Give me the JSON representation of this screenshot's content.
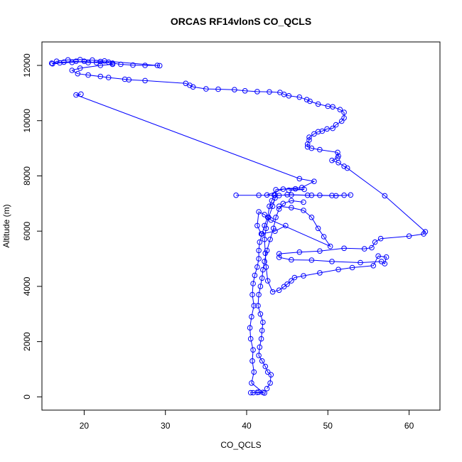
{
  "chart_data": {
    "type": "line",
    "title": "ORCAS RF14vlonS CO_QCLS",
    "xlabel": "CO_QCLS",
    "ylabel": "Altitude (m)",
    "xlim": [
      14.8,
      63.8
    ],
    "ylim": [
      -480,
      12850
    ],
    "x_ticks": [
      "20",
      "30",
      "40",
      "50",
      "60"
    ],
    "y_ticks": [
      "0",
      "2000",
      "4000",
      "6000",
      "8000",
      "10000",
      "12000"
    ],
    "grid": false,
    "legend": "none",
    "marker": "open-circle",
    "color": "#0000ff",
    "series": [
      {
        "values": [
          [
            16.0,
            12080
          ],
          [
            17.5,
            12120
          ],
          [
            19.0,
            12150
          ],
          [
            20.5,
            12100
          ],
          [
            22.0,
            12140
          ],
          [
            23.5,
            12080
          ],
          [
            24.5,
            12040
          ],
          [
            26.0,
            12010
          ],
          [
            27.5,
            12000
          ],
          [
            29.0,
            12000
          ],
          [
            29.3,
            11990
          ],
          [
            22.5,
            12160
          ],
          [
            21.0,
            12190
          ],
          [
            19.5,
            12210
          ],
          [
            18.0,
            12200
          ],
          [
            16.6,
            12150
          ],
          [
            16.1,
            12060
          ],
          [
            17.0,
            12090
          ],
          [
            18.5,
            12110
          ],
          [
            20.0,
            12150
          ],
          [
            21.5,
            12100
          ],
          [
            23.0,
            12120
          ],
          [
            23.5,
            12040
          ],
          [
            22.0,
            12000
          ],
          [
            19.5,
            11900
          ],
          [
            18.5,
            11820
          ],
          [
            19.2,
            11700
          ],
          [
            20.5,
            11650
          ],
          [
            22.0,
            11600
          ],
          [
            23.0,
            11560
          ],
          [
            25.0,
            11500
          ],
          [
            25.5,
            11480
          ],
          [
            27.5,
            11450
          ],
          [
            32.5,
            11350
          ],
          [
            33.0,
            11280
          ],
          [
            33.4,
            11220
          ],
          [
            35.0,
            11150
          ],
          [
            36.5,
            11140
          ],
          [
            38.5,
            11120
          ],
          [
            39.8,
            11080
          ],
          [
            41.3,
            11050
          ],
          [
            42.8,
            11040
          ],
          [
            44.1,
            11020
          ],
          [
            44.6,
            10950
          ],
          [
            45.2,
            10900
          ],
          [
            46.5,
            10850
          ],
          [
            47.4,
            10760
          ],
          [
            47.8,
            10700
          ],
          [
            48.8,
            10600
          ],
          [
            50.0,
            10520
          ],
          [
            50.6,
            10500
          ],
          [
            51.5,
            10400
          ],
          [
            52.0,
            10300
          ],
          [
            52.0,
            10100
          ],
          [
            51.7,
            9980
          ],
          [
            51.0,
            9850
          ],
          [
            50.6,
            9720
          ],
          [
            49.9,
            9700
          ],
          [
            49.3,
            9620
          ],
          [
            48.8,
            9600
          ],
          [
            48.3,
            9520
          ],
          [
            47.7,
            9400
          ],
          [
            47.7,
            9300
          ],
          [
            47.5,
            9150
          ],
          [
            47.5,
            9050
          ],
          [
            48.0,
            9000
          ],
          [
            49.0,
            8950
          ],
          [
            51.2,
            8850
          ],
          [
            51.3,
            8720
          ],
          [
            51.2,
            8650
          ],
          [
            50.5,
            8560
          ],
          [
            51.3,
            8480
          ],
          [
            52.0,
            8350
          ],
          [
            52.4,
            8280
          ],
          [
            57.0,
            7280
          ],
          [
            62.0,
            5980
          ],
          [
            61.8,
            5900
          ],
          [
            60.0,
            5820
          ],
          [
            56.5,
            5730
          ],
          [
            55.8,
            5600
          ],
          [
            55.4,
            5400
          ],
          [
            54.5,
            5360
          ],
          [
            52.0,
            5380
          ],
          [
            49.0,
            5280
          ],
          [
            46.5,
            5240
          ],
          [
            44.0,
            5180
          ],
          [
            44.0,
            5050
          ],
          [
            45.5,
            4960
          ],
          [
            48.0,
            4950
          ],
          [
            50.5,
            4900
          ],
          [
            54.0,
            4860
          ],
          [
            56.6,
            4900
          ],
          [
            57.0,
            4820
          ],
          [
            57.2,
            5060
          ],
          [
            56.2,
            5100
          ],
          [
            55.6,
            4750
          ],
          [
            53.0,
            4680
          ],
          [
            51.3,
            4610
          ],
          [
            49.0,
            4490
          ],
          [
            47.0,
            4380
          ],
          [
            45.9,
            4320
          ],
          [
            45.5,
            4200
          ],
          [
            45.0,
            4080
          ],
          [
            44.6,
            3990
          ],
          [
            44.0,
            3860
          ],
          [
            43.2,
            3800
          ],
          [
            42.6,
            4200
          ],
          [
            42.4,
            4700
          ],
          [
            42.3,
            5200
          ],
          [
            42.2,
            5700
          ],
          [
            42.4,
            6100
          ],
          [
            42.7,
            6500
          ],
          [
            43.2,
            6900
          ],
          [
            43.5,
            7200
          ],
          [
            43.6,
            7500
          ],
          [
            46.8,
            7580
          ],
          [
            48.3,
            7800
          ],
          [
            46.5,
            7900
          ],
          [
            19.0,
            10930
          ],
          [
            19.6,
            10960
          ]
        ]
      },
      {
        "values": [
          [
            38.7,
            7300
          ],
          [
            41.5,
            7300
          ],
          [
            43.5,
            7300
          ],
          [
            45.5,
            7310
          ],
          [
            47.5,
            7300
          ],
          [
            49.0,
            7300
          ],
          [
            50.5,
            7290
          ],
          [
            52.0,
            7300
          ],
          [
            52.8,
            7310
          ],
          [
            51.0,
            7280
          ],
          [
            48.0,
            7300
          ],
          [
            45.0,
            7320
          ],
          [
            44.0,
            7290
          ],
          [
            42.5,
            7310
          ],
          [
            44.5,
            7520
          ],
          [
            46.0,
            7530
          ],
          [
            47.1,
            7510
          ],
          [
            45.2,
            7480
          ]
        ]
      },
      {
        "values": [
          [
            40.5,
            150
          ],
          [
            41.3,
            160
          ],
          [
            42.2,
            140
          ],
          [
            41.5,
            170
          ],
          [
            40.8,
            150
          ],
          [
            42.0,
            160
          ],
          [
            40.6,
            500
          ],
          [
            40.9,
            900
          ],
          [
            40.7,
            1300
          ],
          [
            40.8,
            1700
          ],
          [
            40.5,
            2100
          ],
          [
            40.4,
            2500
          ],
          [
            40.6,
            2900
          ],
          [
            40.9,
            3300
          ],
          [
            40.7,
            3700
          ],
          [
            40.8,
            4100
          ],
          [
            41.0,
            4400
          ],
          [
            41.3,
            4700
          ],
          [
            41.5,
            5000
          ],
          [
            41.5,
            5300
          ],
          [
            41.6,
            5600
          ],
          [
            41.9,
            5900
          ],
          [
            42.2,
            6200
          ],
          [
            42.6,
            6500
          ],
          [
            42.8,
            6900
          ],
          [
            43.1,
            7100
          ],
          [
            43.4,
            7300
          ]
        ]
      },
      {
        "values": [
          [
            42.5,
            300
          ],
          [
            42.9,
            500
          ],
          [
            43.0,
            800
          ],
          [
            42.6,
            900
          ],
          [
            42.3,
            1100
          ],
          [
            41.9,
            1300
          ],
          [
            41.5,
            1500
          ],
          [
            41.6,
            1800
          ],
          [
            41.8,
            2100
          ],
          [
            41.9,
            2400
          ],
          [
            42.0,
            2700
          ],
          [
            41.7,
            3000
          ],
          [
            41.4,
            3300
          ],
          [
            41.5,
            3700
          ],
          [
            41.7,
            4000
          ],
          [
            41.9,
            4300
          ],
          [
            42.0,
            4600
          ],
          [
            42.2,
            4900
          ],
          [
            42.5,
            5300
          ],
          [
            42.9,
            5700
          ],
          [
            43.3,
            6100
          ],
          [
            43.6,
            6500
          ],
          [
            44.0,
            6800
          ],
          [
            44.5,
            7000
          ],
          [
            45.5,
            7100
          ],
          [
            47.0,
            7050
          ]
        ]
      },
      {
        "values": [
          [
            44.0,
            6900
          ],
          [
            45.5,
            6850
          ],
          [
            47.0,
            6750
          ],
          [
            48.0,
            6500
          ],
          [
            48.8,
            6100
          ],
          [
            49.5,
            5800
          ],
          [
            50.3,
            5450
          ],
          [
            43.0,
            6400
          ],
          [
            42.2,
            6600
          ],
          [
            41.5,
            6700
          ],
          [
            41.3,
            6200
          ],
          [
            41.8,
            5900
          ],
          [
            43.5,
            6000
          ],
          [
            44.8,
            6200
          ]
        ]
      }
    ]
  }
}
